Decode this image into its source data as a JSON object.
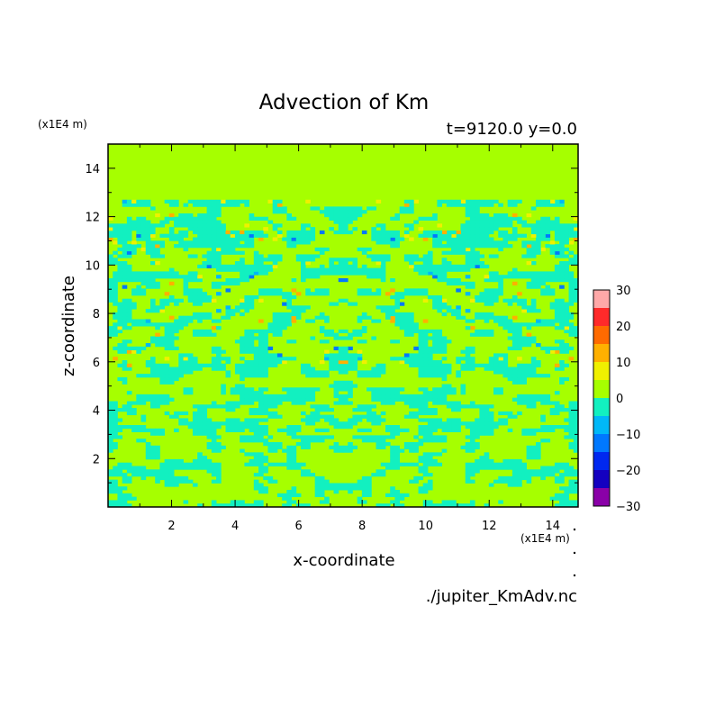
{
  "chart_data": {
    "type": "heatmap",
    "title": "Advection of Km",
    "subtitle": "t=9120.0 y=0.0",
    "xlabel": "x-coordinate",
    "ylabel": "z-coordinate",
    "x_unit": "(x1E4 m)",
    "y_unit": "(x1E4 m)",
    "source_file": "./jupiter_KmAdv.nc",
    "xlim": [
      0,
      14.8
    ],
    "ylim": [
      0,
      15
    ],
    "x_ticks": [
      2,
      4,
      6,
      8,
      10,
      12,
      14
    ],
    "y_ticks": [
      2,
      4,
      6,
      8,
      10,
      12,
      14
    ],
    "x_tick_labels": [
      "2",
      "4",
      "6",
      "8",
      "10",
      "12",
      "14"
    ],
    "y_tick_labels": [
      "2",
      "4",
      "6",
      "8",
      "10",
      "12",
      "14"
    ],
    "field_top_z": 12.7,
    "field_description_levels": "mostly values between -5 and 5, with sparse patches near ±10 to ±15 above z≈6",
    "colorbar": {
      "levels": [
        -30,
        -25,
        -20,
        -15,
        -10,
        -5,
        0,
        5,
        10,
        15,
        20,
        25,
        30
      ],
      "tick_labels": [
        "30",
        "20",
        "10",
        "0",
        "−10",
        "−20",
        "−30"
      ],
      "tick_values": [
        30,
        20,
        10,
        0,
        -10,
        -20,
        -30
      ],
      "colors": [
        "#8a00a8",
        "#1400c0",
        "#0028f0",
        "#0078ff",
        "#00b8f8",
        "#12f0c0",
        "#a6ff00",
        "#f0f000",
        "#ffb000",
        "#ff6a00",
        "#ff2a2a",
        "#ffa8a8"
      ]
    },
    "colors": {
      "background_level": "#a6ff00",
      "secondary_level": "#12f0c0"
    }
  }
}
